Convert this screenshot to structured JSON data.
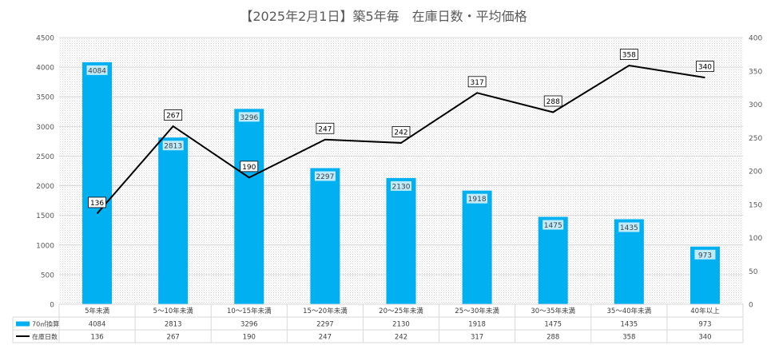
{
  "chart_data": {
    "type": "bar",
    "title": "【2025年2月1日】築5年毎　在庫日数・平均価格",
    "categories": [
      "5年未満",
      "5～10年未満",
      "10～15年未満",
      "15～20年未満",
      "20～25年未満",
      "25～30年未満",
      "30～35年未満",
      "35～40年未満",
      "40年以上"
    ],
    "series": [
      {
        "name": "70㎡換算",
        "type": "bar",
        "axis": "left",
        "color": "#00B0F0",
        "values": [
          4084,
          2813,
          3296,
          2297,
          2130,
          1918,
          1475,
          1435,
          973
        ]
      },
      {
        "name": "在庫日数",
        "type": "line",
        "axis": "right",
        "color": "#000000",
        "values": [
          136,
          267,
          190,
          247,
          242,
          317,
          288,
          358,
          340
        ]
      }
    ],
    "ylim_left": [
      0,
      4500
    ],
    "ylim_right": [
      0,
      400
    ],
    "yticks_left": [
      0,
      500,
      1000,
      1500,
      2000,
      2500,
      3000,
      3500,
      4000,
      4500
    ],
    "yticks_right": [
      0,
      50,
      100,
      150,
      200,
      250,
      300,
      350,
      400
    ],
    "data_table": true,
    "plot_background": "dotted-gray"
  }
}
